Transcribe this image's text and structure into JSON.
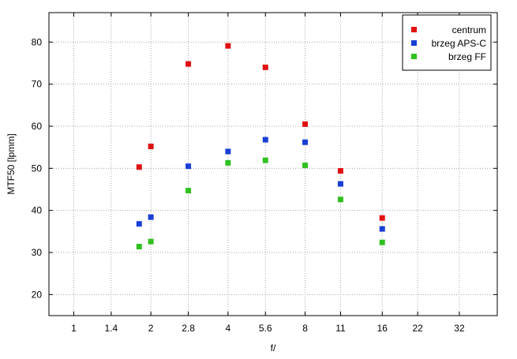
{
  "chart_data": {
    "type": "scatter",
    "title": "",
    "xlabel": "f/",
    "ylabel": "MTF50 [lpmm]",
    "x_scale": "log2",
    "xlim": [
      0.8,
      45
    ],
    "ylim": [
      15,
      87
    ],
    "x_ticks": [
      1,
      1.4,
      2,
      2.8,
      4,
      5.6,
      8,
      11,
      16,
      22,
      32
    ],
    "x_tick_labels": [
      "1",
      "1.4",
      "2",
      "2.8",
      "4",
      "5.6",
      "8",
      "11",
      "16",
      "22",
      "32"
    ],
    "y_ticks": [
      20,
      30,
      40,
      50,
      60,
      70,
      80
    ],
    "y_tick_labels": [
      "20",
      "30",
      "40",
      "50",
      "60",
      "70",
      "80"
    ],
    "grid": true,
    "legend_position": "top-right",
    "x": [
      1.8,
      2,
      2.8,
      4,
      5.6,
      8,
      11,
      16
    ],
    "series": [
      {
        "name": "centrum",
        "color": "#e01010",
        "values": [
          50.3,
          55.2,
          74.8,
          79.1,
          74.0,
          60.5,
          49.4,
          38.2
        ]
      },
      {
        "name": "brzeg APS-C",
        "color": "#1a3fd6",
        "values": [
          36.8,
          38.4,
          50.5,
          54.0,
          56.8,
          56.2,
          46.3,
          35.6
        ]
      },
      {
        "name": "brzeg FF",
        "color": "#30c020",
        "values": [
          31.4,
          32.6,
          44.7,
          51.3,
          51.9,
          50.7,
          42.6,
          32.4
        ]
      }
    ]
  }
}
